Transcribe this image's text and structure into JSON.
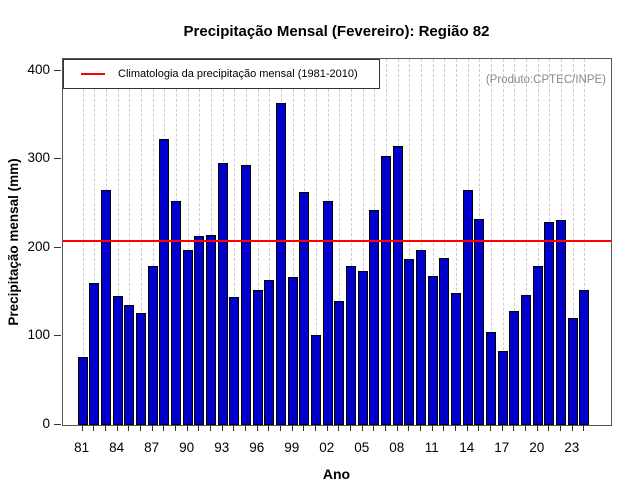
{
  "title": "Precipitação Mensal (Fevereiro): Região 82",
  "annotation": "(Produto:CPTEC/INPE)",
  "legend": {
    "label": "Climatologia da precipitação mensal (1981-2010)"
  },
  "chart_data": {
    "type": "bar",
    "title": "Precipitação Mensal (Fevereiro): Região 82",
    "xlabel": "Ano",
    "ylabel": "Precipitação mensal (mm)",
    "ylim": [
      0,
      414
    ],
    "y_ticks": [
      0,
      100,
      200,
      300,
      400
    ],
    "x_tick_labels": [
      "81",
      "84",
      "87",
      "90",
      "93",
      "96",
      "99",
      "02",
      "05",
      "08",
      "11",
      "14",
      "17",
      "20",
      "23"
    ],
    "categories": [
      1981,
      1982,
      1983,
      1984,
      1985,
      1986,
      1987,
      1988,
      1989,
      1990,
      1991,
      1992,
      1993,
      1994,
      1995,
      1996,
      1997,
      1998,
      1999,
      2000,
      2001,
      2002,
      2003,
      2004,
      2005,
      2006,
      2007,
      2008,
      2009,
      2010,
      2011,
      2012,
      2013,
      2014,
      2015,
      2016,
      2017,
      2018,
      2019,
      2020,
      2021,
      2022,
      2023,
      2024
    ],
    "values": [
      77,
      160,
      265,
      146,
      135,
      127,
      179,
      323,
      253,
      197,
      213,
      215,
      296,
      145,
      293,
      152,
      164,
      363,
      167,
      263,
      102,
      253,
      140,
      180,
      174,
      243,
      304,
      315,
      187,
      197,
      168,
      188,
      149,
      265,
      232,
      105,
      84,
      129,
      147,
      180,
      229,
      231,
      121,
      152
    ],
    "climatology_line": 208,
    "legend_entries": [
      "Climatologia da precipitação mensal (1981-2010)"
    ],
    "legend_position": "top-left",
    "grid": "vertical-dashed",
    "colors": {
      "bar_fill": "#0000CC",
      "bar_border": "#000000",
      "climatology": "#FF0000",
      "grid": "#CCCCCC",
      "annotation": "#888888",
      "axis": "#333333"
    }
  }
}
